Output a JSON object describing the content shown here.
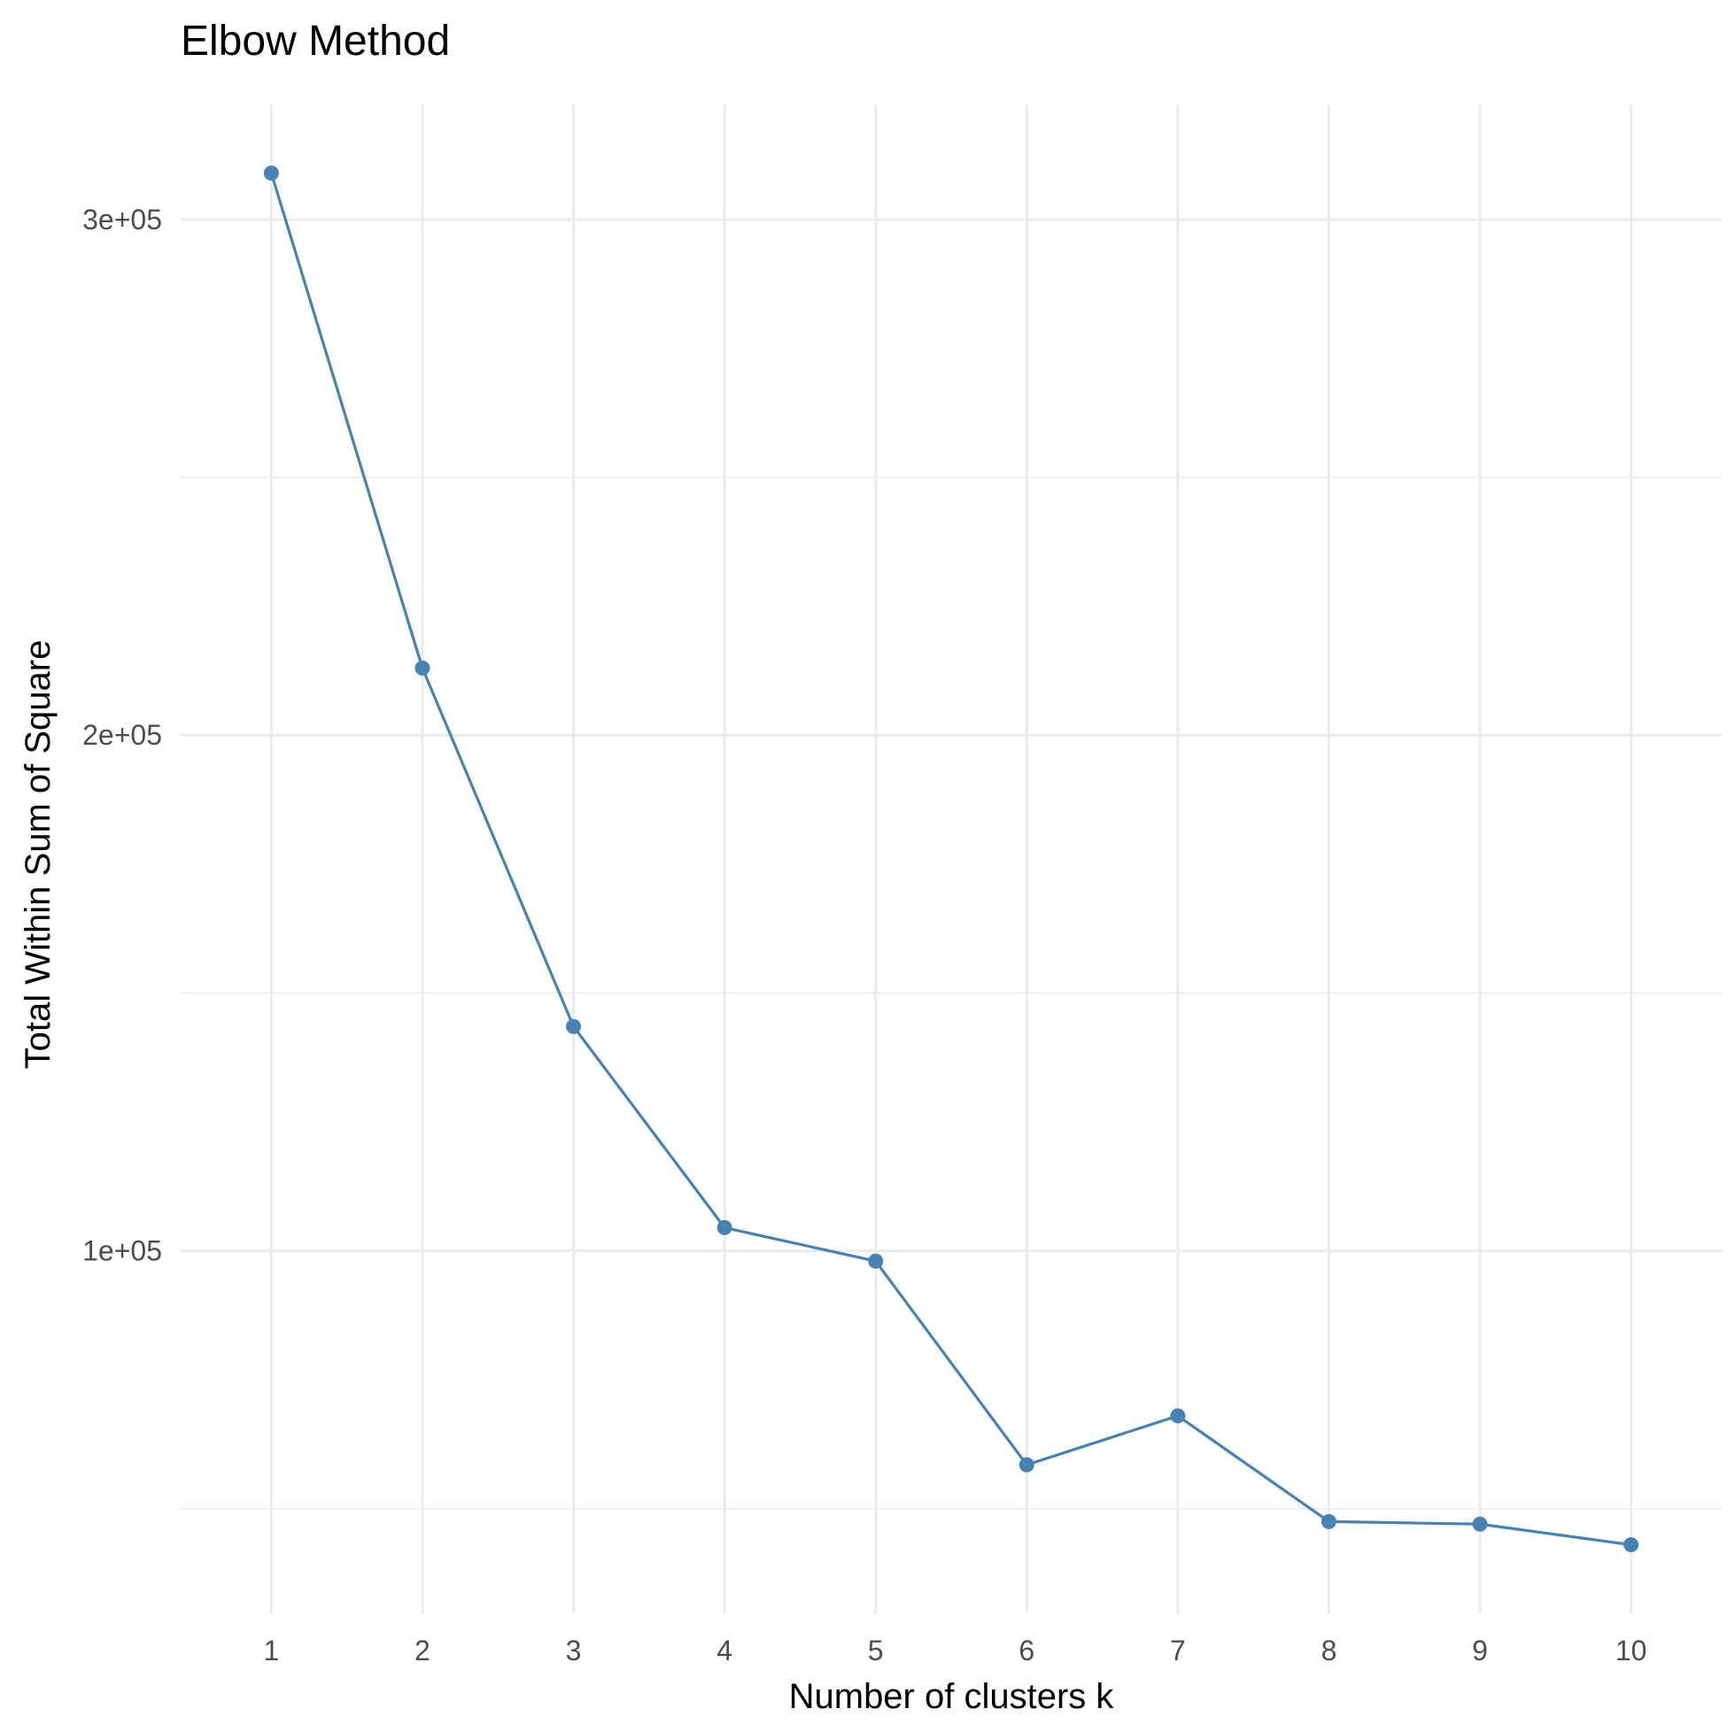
{
  "chart_data": {
    "type": "line",
    "title": "Elbow Method",
    "xlabel": "Number of clusters k",
    "ylabel": "Total Within Sum of Square",
    "x": [
      1,
      2,
      3,
      4,
      5,
      6,
      7,
      8,
      9,
      10
    ],
    "series": [
      {
        "values": [
          309000,
          213000,
          143500,
          104500,
          98000,
          58500,
          68000,
          47500,
          47000,
          43000
        ],
        "color": "#4682b4"
      }
    ],
    "xticks": [
      "1",
      "2",
      "3",
      "4",
      "5",
      "6",
      "7",
      "8",
      "9",
      "10"
    ],
    "yticks": [
      {
        "value": 100000,
        "label": "1e+05"
      },
      {
        "value": 200000,
        "label": "2e+05"
      },
      {
        "value": 300000,
        "label": "3e+05"
      }
    ],
    "y_minor_grid": [
      50000,
      150000,
      250000
    ],
    "xlim": [
      0.4,
      10.6
    ],
    "ylim": [
      29700,
      322300
    ],
    "grid": true,
    "legend": "none",
    "colors": {
      "line": "#4682b4",
      "grid": "#ebebeb",
      "tick_text": "#4d4d4d",
      "background": "#ffffff"
    }
  }
}
